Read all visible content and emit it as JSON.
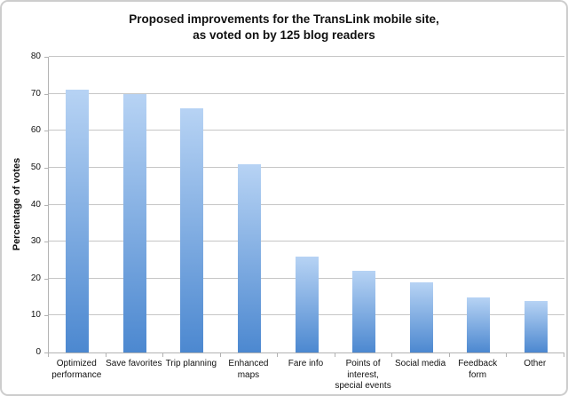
{
  "page": {
    "background": "#ffffff",
    "border_color": "#cdcdcd"
  },
  "chart_data": {
    "type": "bar",
    "title": "Proposed improvements for the TransLink mobile site, as voted on by 125 blog readers",
    "title_lines": [
      "Proposed improvements for the TransLink mobile site,",
      "as voted on by 125 blog readers"
    ],
    "ylabel": "Percentage of votes",
    "xlabel": "",
    "categories": [
      "Optimized performance",
      "Save favorites",
      "Trip planning",
      "Enhanced maps",
      "Fare info",
      "Points of interest, special events",
      "Social media",
      "Feedback form",
      "Other"
    ],
    "category_lines": [
      [
        "Optimized",
        "performance"
      ],
      [
        "Save favorites"
      ],
      [
        "Trip planning"
      ],
      [
        "Enhanced",
        "maps"
      ],
      [
        "Fare info"
      ],
      [
        "Points of",
        "interest,",
        "special events"
      ],
      [
        "Social media"
      ],
      [
        "Feedback form"
      ],
      [
        "Other"
      ]
    ],
    "values": [
      71,
      70,
      66,
      51,
      26,
      22,
      19,
      15,
      14
    ],
    "ylim": [
      0,
      80
    ],
    "yticks": [
      0,
      10,
      20,
      30,
      40,
      50,
      60,
      70,
      80
    ],
    "grid": true,
    "legend": null,
    "colors": {
      "bar_gradient_top": "#b7d3f4",
      "bar_gradient_bottom": "#4c88d0",
      "gridline": "#c6c6c6",
      "axis": "#b2b2b2",
      "text": "#111111"
    }
  }
}
